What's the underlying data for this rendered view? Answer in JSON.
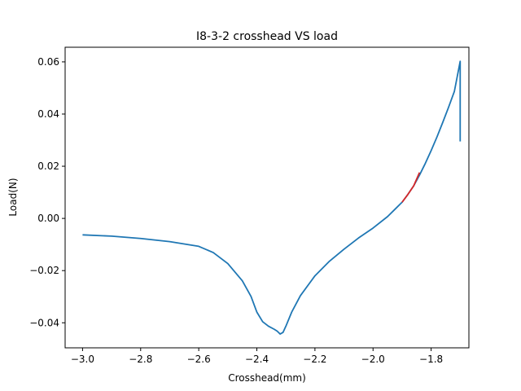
{
  "chart_data": {
    "type": "line",
    "title": "I8-3-2 crosshead VS load",
    "xlabel": "Crosshead(mm)",
    "ylabel": "Load(N)",
    "xlim": [
      -3.06,
      -1.67
    ],
    "ylim": [
      -0.0496,
      0.0656
    ],
    "grid": false,
    "legend": "none",
    "x_ticks": [
      -3.0,
      -2.8,
      -2.6,
      -2.4,
      -2.2,
      -2.0,
      -1.8
    ],
    "x_tick_labels": [
      "−3.0",
      "−2.8",
      "−2.6",
      "−2.4",
      "−2.2",
      "−2.0",
      "−1.8"
    ],
    "y_ticks": [
      -0.04,
      -0.02,
      0.0,
      0.02,
      0.04,
      0.06
    ],
    "y_tick_labels": [
      "−0.04",
      "−0.02",
      "0.00",
      "0.02",
      "0.04",
      "0.06"
    ],
    "series": [
      {
        "color": "#1f77b4",
        "x": [
          -3.0,
          -2.9,
          -2.8,
          -2.7,
          -2.6,
          -2.55,
          -2.5,
          -2.45,
          -2.42,
          -2.4,
          -2.38,
          -2.36,
          -2.34,
          -2.33,
          -2.32,
          -2.31,
          -2.3,
          -2.28,
          -2.25,
          -2.2,
          -2.15,
          -2.1,
          -2.05,
          -2.0,
          -1.95,
          -1.92,
          -1.9,
          -1.88,
          -1.86,
          -1.84,
          -1.82,
          -1.8,
          -1.78,
          -1.76,
          -1.74,
          -1.72,
          -1.7,
          -1.7,
          -1.7
        ],
        "y": [
          -0.0063,
          -0.0068,
          -0.0077,
          -0.0089,
          -0.0107,
          -0.0131,
          -0.0173,
          -0.0239,
          -0.0299,
          -0.0359,
          -0.0396,
          -0.0413,
          -0.0425,
          -0.0432,
          -0.0443,
          -0.0437,
          -0.0413,
          -0.0359,
          -0.0296,
          -0.022,
          -0.0164,
          -0.0118,
          -0.0075,
          -0.0037,
          0.0007,
          0.004,
          0.0062,
          0.0092,
          0.0125,
          0.0166,
          0.0211,
          0.026,
          0.0312,
          0.0368,
          0.0426,
          0.0487,
          0.0602,
          0.0602,
          0.0295
        ]
      },
      {
        "color": "#d62728",
        "x": [
          -1.9,
          -1.88,
          -1.86,
          -1.84
        ],
        "y": [
          0.0062,
          0.0092,
          0.0125,
          0.0176
        ]
      }
    ]
  }
}
